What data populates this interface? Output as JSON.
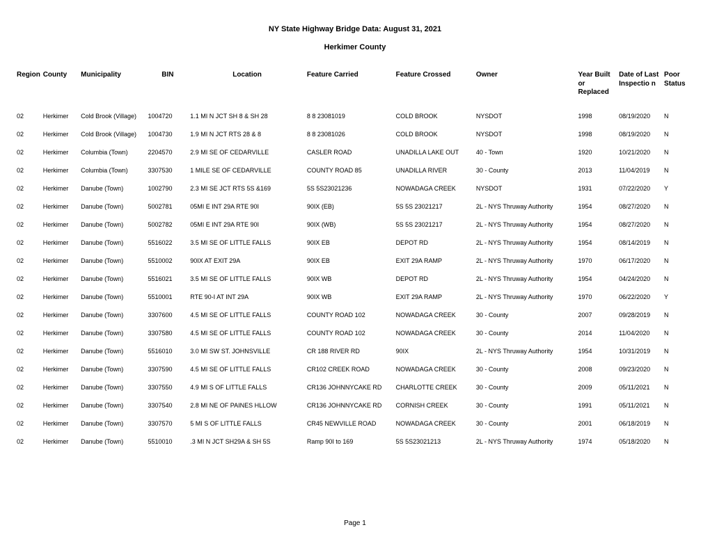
{
  "title": "NY State Highway Bridge Data:  August 31, 2021",
  "subtitle": "Herkimer County",
  "footer": "Page 1",
  "colors": {
    "background": "#ffffff",
    "text": "#000000"
  },
  "typography": {
    "font_family": "Arial, Helvetica, sans-serif",
    "title_fontsize": 11,
    "header_fontsize": 10,
    "body_fontsize": 9
  },
  "headers": {
    "region": "Region",
    "county": "County",
    "municipality": "Municipality",
    "bin": "BIN",
    "location": "Location",
    "feature_carried": "Feature Carried",
    "feature_crossed": "Feature Crossed",
    "owner": "Owner",
    "year": "Year Built or Replaced",
    "date": "Date of Last Inspectio n",
    "poor": "Poor Status"
  },
  "rows": [
    {
      "region": "02",
      "county": "Herkimer",
      "municipality": "Cold Brook (Village)",
      "bin": "1004720",
      "location": "1.1 MI N JCT SH 8 & SH 28",
      "feature_carried": "8   8 23081019",
      "feature_crossed": "COLD BROOK",
      "owner": "NYSDOT",
      "year": "1998",
      "date": "08/19/2020",
      "poor": "N"
    },
    {
      "region": "02",
      "county": "Herkimer",
      "municipality": "Cold Brook (Village)",
      "bin": "1004730",
      "location": "1.9 MI N JCT RTS 28 & 8",
      "feature_carried": "8   8 23081026",
      "feature_crossed": "COLD BROOK",
      "owner": "NYSDOT",
      "year": "1998",
      "date": "08/19/2020",
      "poor": "N"
    },
    {
      "region": "02",
      "county": "Herkimer",
      "municipality": "Columbia (Town)",
      "bin": "2204570",
      "location": "2.9 MI SE OF CEDARVILLE",
      "feature_carried": "CASLER ROAD",
      "feature_crossed": "UNADILLA LAKE OUT",
      "owner": "40 - Town",
      "year": "1920",
      "date": "10/21/2020",
      "poor": "N"
    },
    {
      "region": "02",
      "county": "Herkimer",
      "municipality": "Columbia (Town)",
      "bin": "3307530",
      "location": "1 MILE SE OF CEDARVILLE",
      "feature_carried": "COUNTY ROAD 85",
      "feature_crossed": "UNADILLA RIVER",
      "owner": "30 - County",
      "year": "2013",
      "date": "11/04/2019",
      "poor": "N"
    },
    {
      "region": "02",
      "county": "Herkimer",
      "municipality": "Danube (Town)",
      "bin": "1002790",
      "location": "2.3 MI SE JCT RTS 5S &169",
      "feature_carried": "5S  5S23021236",
      "feature_crossed": "NOWADAGA CREEK",
      "owner": "NYSDOT",
      "year": "1931",
      "date": "07/22/2020",
      "poor": "Y"
    },
    {
      "region": "02",
      "county": "Herkimer",
      "municipality": "Danube (Town)",
      "bin": "5002781",
      "location": "05MI E INT 29A RTE 90I",
      "feature_carried": "90IX  (EB)",
      "feature_crossed": "5S  5S 23021217",
      "owner": "2L - NYS Thruway Authority",
      "year": "1954",
      "date": "08/27/2020",
      "poor": "N"
    },
    {
      "region": "02",
      "county": "Herkimer",
      "municipality": "Danube (Town)",
      "bin": "5002782",
      "location": "05MI E INT 29A RTE 90I",
      "feature_carried": "90IX  (WB)",
      "feature_crossed": "5S  5S 23021217",
      "owner": "2L - NYS Thruway Authority",
      "year": "1954",
      "date": "08/27/2020",
      "poor": "N"
    },
    {
      "region": "02",
      "county": "Herkimer",
      "municipality": "Danube (Town)",
      "bin": "5516022",
      "location": "3.5 MI SE OF LITTLE FALLS",
      "feature_carried": "90IX EB",
      "feature_crossed": "DEPOT RD",
      "owner": "2L - NYS Thruway Authority",
      "year": "1954",
      "date": "08/14/2019",
      "poor": "N"
    },
    {
      "region": "02",
      "county": "Herkimer",
      "municipality": "Danube (Town)",
      "bin": "5510002",
      "location": "90IX AT EXIT 29A",
      "feature_carried": "90IX EB",
      "feature_crossed": "EXIT 29A RAMP",
      "owner": "2L - NYS Thruway Authority",
      "year": "1970",
      "date": "06/17/2020",
      "poor": "N"
    },
    {
      "region": "02",
      "county": "Herkimer",
      "municipality": "Danube (Town)",
      "bin": "5516021",
      "location": "3.5 MI SE OF LITTLE FALLS",
      "feature_carried": "90IX WB",
      "feature_crossed": "DEPOT RD",
      "owner": "2L - NYS Thruway Authority",
      "year": "1954",
      "date": "04/24/2020",
      "poor": "N"
    },
    {
      "region": "02",
      "county": "Herkimer",
      "municipality": "Danube (Town)",
      "bin": "5510001",
      "location": "RTE 90-I AT INT 29A",
      "feature_carried": "90IX WB",
      "feature_crossed": "EXIT 29A RAMP",
      "owner": "2L - NYS Thruway Authority",
      "year": "1970",
      "date": "06/22/2020",
      "poor": "Y"
    },
    {
      "region": "02",
      "county": "Herkimer",
      "municipality": "Danube (Town)",
      "bin": "3307600",
      "location": "4.5 MI SE OF LITTLE FALLS",
      "feature_carried": "COUNTY ROAD 102",
      "feature_crossed": "NOWADAGA CREEK",
      "owner": "30 - County",
      "year": "2007",
      "date": "09/28/2019",
      "poor": "N"
    },
    {
      "region": "02",
      "county": "Herkimer",
      "municipality": "Danube (Town)",
      "bin": "3307580",
      "location": "4.5 MI SE OF LITTLE FALLS",
      "feature_carried": "COUNTY ROAD 102",
      "feature_crossed": "NOWADAGA CREEK",
      "owner": "30 - County",
      "year": "2014",
      "date": "11/04/2020",
      "poor": "N"
    },
    {
      "region": "02",
      "county": "Herkimer",
      "municipality": "Danube (Town)",
      "bin": "5516010",
      "location": "3.0 MI SW ST. JOHNSVILLE",
      "feature_carried": "CR 188 RIVER RD",
      "feature_crossed": "90IX",
      "owner": "2L - NYS Thruway Authority",
      "year": "1954",
      "date": "10/31/2019",
      "poor": "N"
    },
    {
      "region": "02",
      "county": "Herkimer",
      "municipality": "Danube (Town)",
      "bin": "3307590",
      "location": "4.5 MI SE OF LITTLE FALLS",
      "feature_carried": "CR102 CREEK ROAD",
      "feature_crossed": "NOWADAGA CREEK",
      "owner": "30 - County",
      "year": "2008",
      "date": "09/23/2020",
      "poor": "N"
    },
    {
      "region": "02",
      "county": "Herkimer",
      "municipality": "Danube (Town)",
      "bin": "3307550",
      "location": "4.9 MI S OF LITTLE FALLS",
      "feature_carried": "CR136 JOHNNYCAKE RD",
      "feature_crossed": "CHARLOTTE CREEK",
      "owner": "30 - County",
      "year": "2009",
      "date": "05/11/2021",
      "poor": "N"
    },
    {
      "region": "02",
      "county": "Herkimer",
      "municipality": "Danube (Town)",
      "bin": "3307540",
      "location": "2.8 MI NE OF PAINES HLLOW",
      "feature_carried": "CR136 JOHNNYCAKE RD",
      "feature_crossed": "CORNISH CREEK",
      "owner": "30 - County",
      "year": "1991",
      "date": "05/11/2021",
      "poor": "N"
    },
    {
      "region": "02",
      "county": "Herkimer",
      "municipality": "Danube (Town)",
      "bin": "3307570",
      "location": "5 MI S OF LITTLE FALLS",
      "feature_carried": "CR45 NEWVILLE ROAD",
      "feature_crossed": "NOWADAGA CREEK",
      "owner": "30 - County",
      "year": "2001",
      "date": "06/18/2019",
      "poor": "N"
    },
    {
      "region": "02",
      "county": "Herkimer",
      "municipality": "Danube (Town)",
      "bin": "5510010",
      "location": ".3 MI N JCT SH29A & SH 5S",
      "feature_carried": "Ramp 90I to 169",
      "feature_crossed": "5S  5S23021213",
      "owner": "2L - NYS Thruway Authority",
      "year": "1974",
      "date": "05/18/2020",
      "poor": "N"
    }
  ]
}
